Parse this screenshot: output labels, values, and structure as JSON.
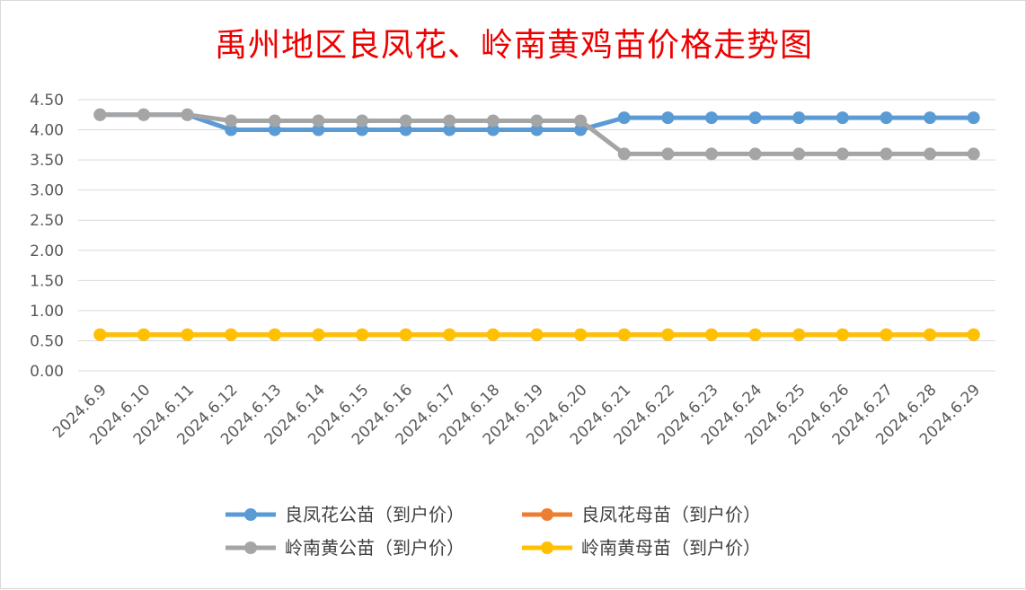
{
  "chart_data": {
    "type": "line",
    "title": "禹州地区良凤花、岭南黄鸡苗价格走势图",
    "xlabel": "",
    "ylabel": "",
    "ylim": [
      0,
      4.5
    ],
    "yticks": [
      "0.00",
      "0.50",
      "1.00",
      "1.50",
      "2.00",
      "2.50",
      "3.00",
      "3.50",
      "4.00",
      "4.50"
    ],
    "grid": true,
    "legend_position": "bottom",
    "categories": [
      "2024.6.9",
      "2024.6.10",
      "2024.6.11",
      "2024.6.12",
      "2024.6.13",
      "2024.6.14",
      "2024.6.15",
      "2024.6.16",
      "2024.6.17",
      "2024.6.18",
      "2024.6.19",
      "2024.6.20",
      "2024.6.21",
      "2024.6.22",
      "2024.6.23",
      "2024.6.24",
      "2024.6.25",
      "2024.6.26",
      "2024.6.27",
      "2024.6.28",
      "2024.6.29"
    ],
    "series": [
      {
        "name": "良凤花公苗（到户价）",
        "color": "#5b9bd5",
        "values": [
          4.25,
          4.25,
          4.25,
          4.0,
          4.0,
          4.0,
          4.0,
          4.0,
          4.0,
          4.0,
          4.0,
          4.0,
          4.2,
          4.2,
          4.2,
          4.2,
          4.2,
          4.2,
          4.2,
          4.2,
          4.2
        ]
      },
      {
        "name": "良凤花母苗（到户价）",
        "color": "#ed7d31",
        "values": [
          0.6,
          0.6,
          0.6,
          0.6,
          0.6,
          0.6,
          0.6,
          0.6,
          0.6,
          0.6,
          0.6,
          0.6,
          0.6,
          0.6,
          0.6,
          0.6,
          0.6,
          0.6,
          0.6,
          0.6,
          0.6
        ]
      },
      {
        "name": "岭南黄公苗（到户价）",
        "color": "#a5a5a5",
        "values": [
          4.25,
          4.25,
          4.25,
          4.15,
          4.15,
          4.15,
          4.15,
          4.15,
          4.15,
          4.15,
          4.15,
          4.15,
          3.6,
          3.6,
          3.6,
          3.6,
          3.6,
          3.6,
          3.6,
          3.6,
          3.6
        ]
      },
      {
        "name": "岭南黄母苗（到户价）",
        "color": "#ffc000",
        "values": [
          0.6,
          0.6,
          0.6,
          0.6,
          0.6,
          0.6,
          0.6,
          0.6,
          0.6,
          0.6,
          0.6,
          0.6,
          0.6,
          0.6,
          0.6,
          0.6,
          0.6,
          0.6,
          0.6,
          0.6,
          0.6
        ]
      }
    ]
  }
}
